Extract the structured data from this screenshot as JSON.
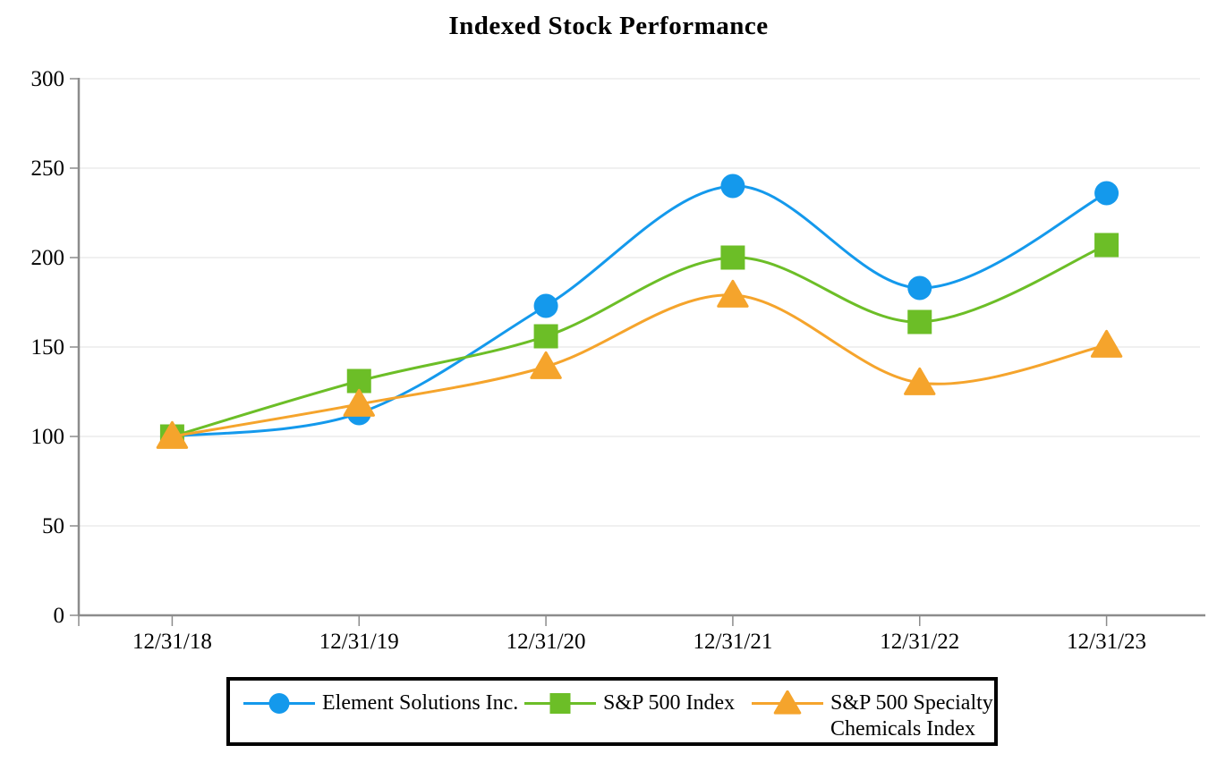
{
  "chart_data": {
    "type": "line",
    "title": "Indexed Stock Performance",
    "smooth": true,
    "grid": true,
    "legend_position": "bottom",
    "categories": [
      "12/31/18",
      "12/31/19",
      "12/31/20",
      "12/31/21",
      "12/31/22",
      "12/31/23"
    ],
    "yticks": [
      0,
      50,
      100,
      150,
      200,
      250,
      300
    ],
    "ylim": [
      0,
      300
    ],
    "series": [
      {
        "name": "Element Solutions Inc.",
        "marker": "circle",
        "color": "#1499EC",
        "values": [
          100,
          113,
          173,
          240,
          183,
          236
        ],
        "legend_lines": [
          "Element Solutions Inc."
        ]
      },
      {
        "name": "S&P 500 Index",
        "marker": "square",
        "color": "#6CBE27",
        "values": [
          100,
          131,
          156,
          200,
          164,
          207
        ],
        "legend_lines": [
          "S&P 500 Index"
        ]
      },
      {
        "name": "S&P 500 Specialty Chemicals Index",
        "marker": "triangle",
        "color": "#F5A42C",
        "values": [
          100,
          118,
          139,
          179,
          130,
          151
        ],
        "legend_lines": [
          "S&P 500 Specialty",
          "Chemicals Index"
        ]
      }
    ],
    "colors": {
      "axis": "#8C8C8C",
      "grid": "#EBEBEB",
      "text": "#000000",
      "legend_border": "#000000",
      "background": "#FFFFFF"
    }
  }
}
